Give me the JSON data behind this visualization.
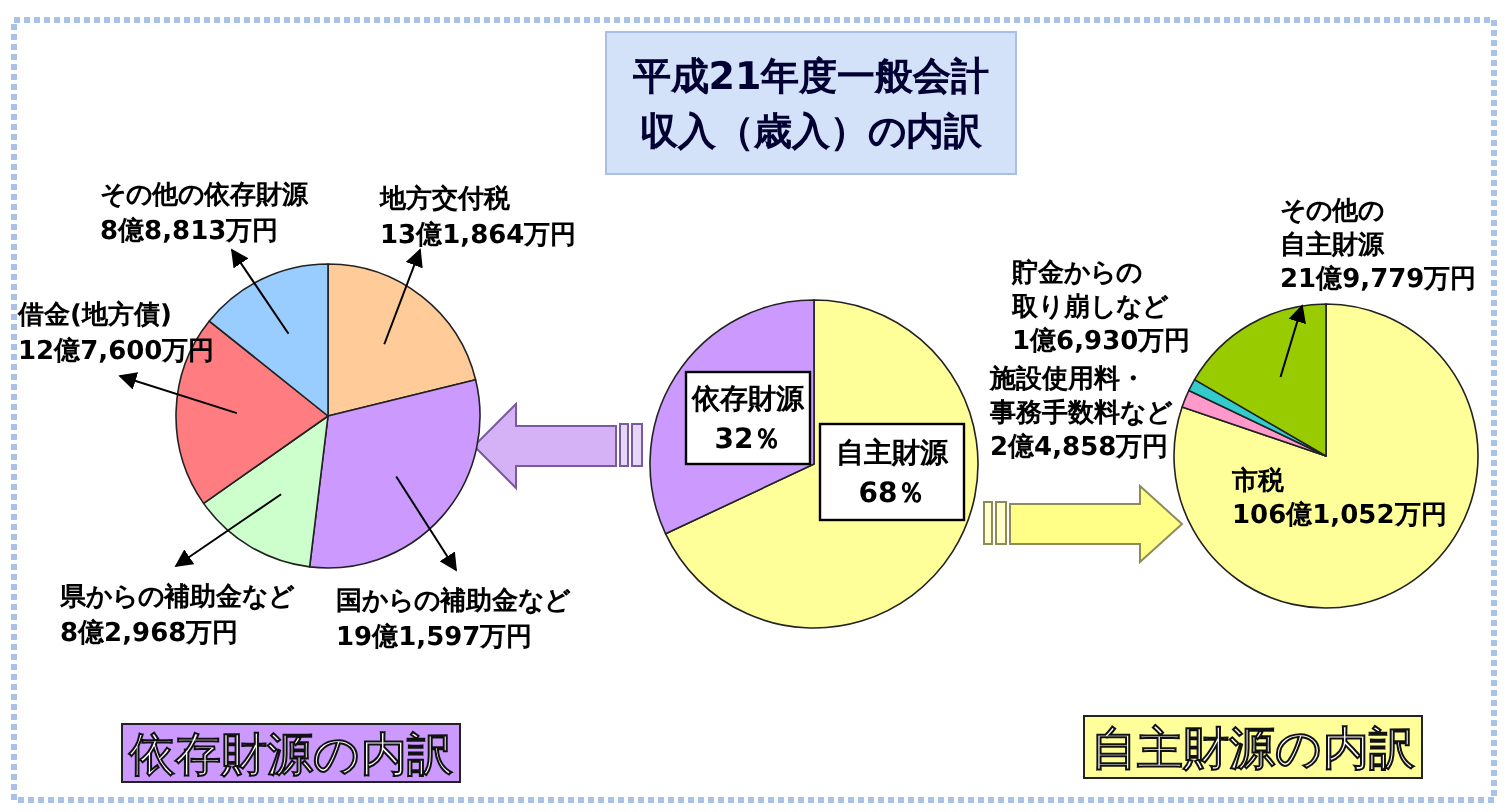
{
  "chart_data": [
    {
      "type": "pie",
      "title": "依存財源の内訳",
      "categories": [
        "地方交付税",
        "国からの補助金など",
        "県からの補助金など",
        "借金(地方債)",
        "その他の依存財源"
      ],
      "values": [
        21.17,
        30.76,
        13.32,
        20.49,
        14.26
      ],
      "colors": [
        "#ffcc99",
        "#cc99ff",
        "#ccffcc",
        "#ff7c80",
        "#99ccff"
      ],
      "annotations": [
        "13億1,864万円",
        "19億1,597万円",
        "8億2,968万円",
        "12億7,600万円",
        "8億8,813万円"
      ]
    },
    {
      "type": "pie",
      "title": "平成21年度一般会計収入（歳入）の内訳",
      "categories": [
        "自主財源",
        "依存財源"
      ],
      "values": [
        68,
        32
      ],
      "colors": [
        "#ffff99",
        "#cc99ff"
      ],
      "value_labels": [
        "68％",
        "32％"
      ]
    },
    {
      "type": "pie",
      "title": "自主財源の内訳",
      "categories": [
        "市税",
        "施設使用料・事務手数料など",
        "貯金からの取り崩しなど",
        "その他の自主財源"
      ],
      "values": [
        80.22,
        1.88,
        1.28,
        16.62
      ],
      "colors": [
        "#ffff99",
        "#ff99cc",
        "#33cccc",
        "#99cc00"
      ],
      "annotations": [
        "106億1,052万円",
        "2億4,858万円",
        "1億6,930万円",
        "21億9,779万円"
      ]
    }
  ]
}
